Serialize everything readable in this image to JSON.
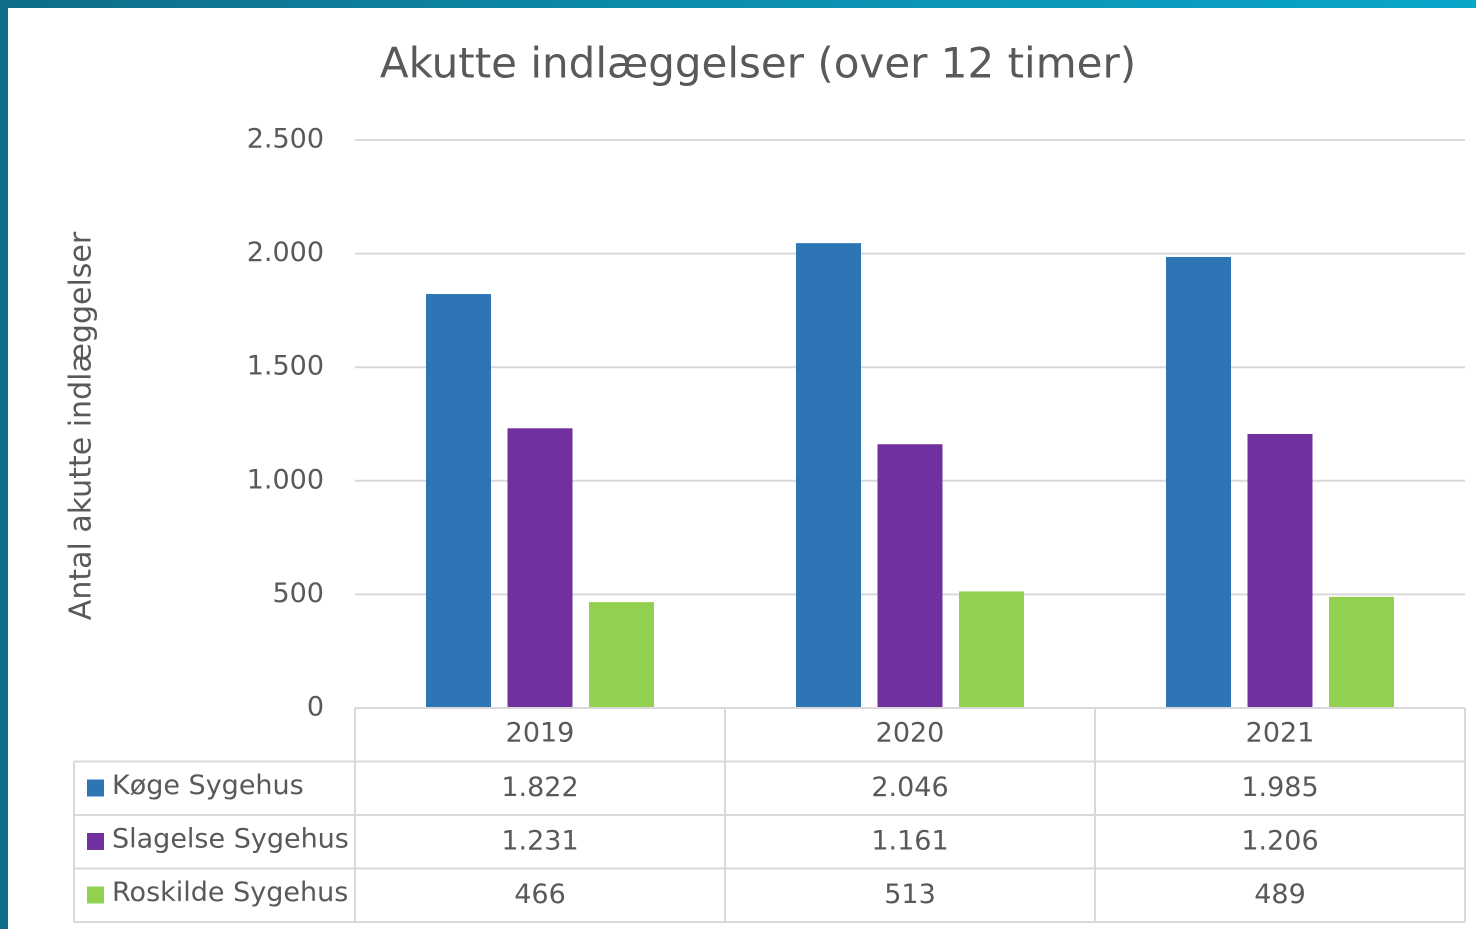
{
  "chart_data": {
    "type": "bar",
    "title": "Akutte indlæggelser (over 12 timer)",
    "y_label": "Antal akutte indlæggelser",
    "categories": [
      "2019",
      "2020",
      "2021"
    ],
    "series": [
      {
        "name": "Køge Sygehus",
        "color": "#2e75b6",
        "values": [
          1822,
          2046,
          1985
        ],
        "value_labels": [
          "1.822",
          "2.046",
          "1.985"
        ]
      },
      {
        "name": "Slagelse Sygehus",
        "color": "#7030a0",
        "values": [
          1231,
          1161,
          1206
        ],
        "value_labels": [
          "1.231",
          "1.161",
          "1.206"
        ]
      },
      {
        "name": "Roskilde Sygehus",
        "color": "#92d050",
        "values": [
          466,
          513,
          489
        ],
        "value_labels": [
          "466",
          "513",
          "489"
        ]
      }
    ],
    "ylim": [
      0,
      2500
    ],
    "yticks": [
      0,
      500,
      {
        "value": 1000,
        "label": "1.000"
      },
      {
        "value": 1500,
        "label": "1.500"
      },
      {
        "value": 2000,
        "label": "2.000"
      },
      {
        "value": 2500,
        "label": "2.500"
      }
    ],
    "grid": true,
    "legend": "data-table"
  }
}
